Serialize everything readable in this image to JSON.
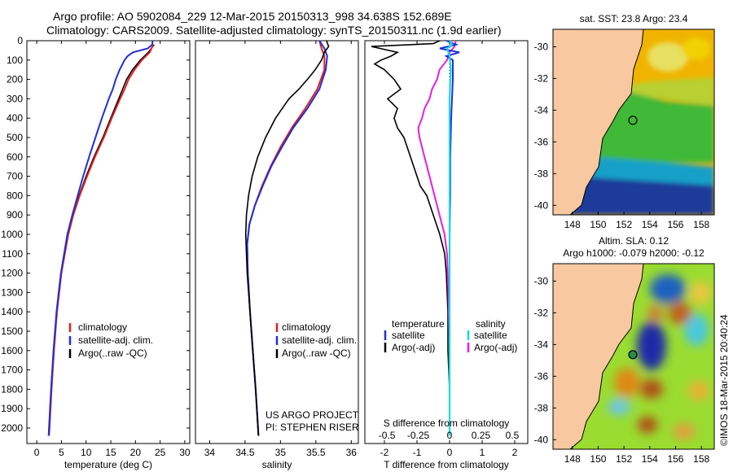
{
  "header": {
    "line1": "Argo profile: AO 5902084_229 12-Mar-2015 20150313_998 34.638S 152.689E",
    "line2": "Climatology: CARS2009. Satellite-adjusted climatology: synTS_20150311.nc (1.9d earlier)"
  },
  "colors": {
    "climatology": "#e02020",
    "satellite": "#1f2fd6",
    "argo": "#000000",
    "sat_sal": "#18d8e0",
    "argo_sal_diff": "#e020e0"
  },
  "depth_axis": {
    "ticks": [
      0,
      100,
      200,
      300,
      400,
      500,
      600,
      700,
      800,
      900,
      1000,
      1100,
      1200,
      1300,
      1400,
      1500,
      1600,
      1700,
      1800,
      1900,
      2000
    ]
  },
  "chart_data": [
    {
      "type": "line",
      "name": "temperature",
      "xlabel": "temperature (deg C)",
      "xlim": [
        -2,
        31
      ],
      "xticks": [
        0,
        5,
        10,
        15,
        20,
        25,
        30
      ],
      "ylim": [
        2080,
        0
      ],
      "legend": [
        "climatology",
        "satellite-adj. clim.",
        "Argo(..raw -QC)"
      ],
      "series": [
        {
          "name": "climatology",
          "depth": [
            20,
            60,
            100,
            150,
            200,
            250,
            300,
            400,
            500,
            600,
            700,
            800,
            900,
            1000,
            1200,
            1400,
            1600,
            1800,
            2040
          ],
          "values": [
            23.8,
            22.6,
            21.0,
            19.4,
            18.2,
            17.4,
            16.6,
            15.0,
            13.4,
            11.6,
            10.0,
            8.6,
            7.3,
            6.3,
            4.9,
            4.0,
            3.4,
            2.9,
            2.4
          ]
        },
        {
          "name": "satellite",
          "depth": [
            20,
            60,
            100,
            150,
            200,
            250,
            300,
            400,
            500,
            600,
            700,
            800,
            900,
            1000,
            1200,
            1400,
            1600,
            1800,
            2040
          ],
          "values": [
            23.6,
            22.9,
            21.3,
            19.8,
            18.6,
            17.8,
            16.9,
            15.2,
            13.6,
            11.8,
            10.2,
            8.7,
            7.4,
            6.4,
            5.0,
            4.1,
            3.5,
            3.0,
            2.5
          ]
        },
        {
          "name": "argo",
          "depth": [
            0,
            20,
            40,
            60,
            80,
            100,
            150,
            200,
            250,
            300,
            400,
            500,
            600,
            700,
            800,
            900,
            1000,
            1200,
            1400,
            1600,
            1800,
            2040
          ],
          "values": [
            23.5,
            23.4,
            22.5,
            19.5,
            18.4,
            17.8,
            16.8,
            16.0,
            15.4,
            14.6,
            13.2,
            11.9,
            10.6,
            9.4,
            8.3,
            7.2,
            6.2,
            4.9,
            4.0,
            3.4,
            2.9,
            2.4
          ]
        }
      ]
    },
    {
      "type": "line",
      "name": "salinity",
      "xlabel": "salinity",
      "xlim": [
        33.8,
        36.1
      ],
      "xticks": [
        34,
        34.5,
        35,
        35.5,
        36
      ],
      "xtick_labels": [
        "34",
        "34.5",
        "35",
        "35.5",
        "36"
      ],
      "ylim": [
        2080,
        0
      ],
      "legend": [
        "climatology",
        "satellite-adj. clim.",
        "Argo(..raw -QC)"
      ],
      "annotation": [
        "US ARGO PROJECT",
        "PI: STEPHEN RISER"
      ],
      "series": [
        {
          "name": "climatology",
          "depth": [
            0,
            40,
            80,
            150,
            250,
            350,
            450,
            550,
            650,
            750,
            850,
            950,
            1050,
            1200,
            1400,
            1600,
            1800,
            2040
          ],
          "values": [
            35.55,
            35.58,
            35.62,
            35.62,
            35.52,
            35.35,
            35.16,
            35.0,
            34.86,
            34.74,
            34.64,
            34.56,
            34.53,
            34.54,
            34.57,
            34.61,
            34.65,
            34.69
          ]
        },
        {
          "name": "satellite",
          "depth": [
            0,
            40,
            80,
            150,
            250,
            350,
            450,
            550,
            650,
            750,
            850,
            950,
            1050,
            1200,
            1400,
            1600,
            1800,
            2040
          ],
          "values": [
            35.55,
            35.62,
            35.66,
            35.64,
            35.55,
            35.38,
            35.18,
            35.02,
            34.87,
            34.75,
            34.64,
            34.56,
            34.53,
            34.54,
            34.57,
            34.61,
            34.65,
            34.69
          ]
        },
        {
          "name": "argo",
          "depth": [
            0,
            30,
            60,
            100,
            150,
            200,
            250,
            300,
            400,
            500,
            600,
            700,
            800,
            900,
            1000,
            1200,
            1400,
            1600,
            1800,
            2040
          ],
          "values": [
            35.65,
            35.68,
            35.62,
            35.58,
            35.49,
            35.38,
            35.26,
            35.12,
            34.93,
            34.79,
            34.68,
            34.6,
            34.55,
            34.52,
            34.51,
            34.53,
            34.57,
            34.61,
            34.65,
            34.69
          ]
        }
      ]
    },
    {
      "type": "line",
      "name": "differences",
      "xlabel": "T difference from climatology",
      "xlabel_top": "S difference from climatology",
      "xlim": [
        -2.6,
        2.4
      ],
      "xticks": [
        -2,
        -1,
        0,
        1,
        2
      ],
      "s_ticks": [
        -0.5,
        -0.25,
        0,
        0.25,
        0.5
      ],
      "s_tick_labels": [
        "-0.5",
        "-0.25",
        "0",
        "0.25",
        "0.5"
      ],
      "ylim": [
        2080,
        0
      ],
      "legend_temperature": "temperature",
      "legend_salinity": "salinity",
      "legend_sat": "satellite",
      "legend_argo": "Argo(-adj)",
      "series": [
        {
          "name": "T satellite",
          "depth": [
            0,
            20,
            40,
            60,
            80,
            100,
            200,
            400,
            600,
            800,
            1000,
            1400,
            1800,
            2040
          ],
          "values": [
            -0.1,
            0.2,
            -0.3,
            0.3,
            -0.1,
            0.1,
            0.1,
            0.05,
            0.02,
            0.02,
            0.0,
            0.0,
            0.0,
            0.0
          ]
        },
        {
          "name": "T argo",
          "depth": [
            0,
            15,
            30,
            60,
            80,
            100,
            120,
            150,
            200,
            250,
            300,
            350,
            400,
            450,
            500,
            550,
            600,
            650,
            700,
            750,
            800,
            850,
            900,
            1000,
            1100,
            1200,
            1400,
            1600,
            1800,
            2040
          ],
          "values": [
            -0.3,
            -0.5,
            -2.4,
            -1.6,
            -1.8,
            -2.1,
            -2.3,
            -2.0,
            -1.7,
            -1.5,
            -1.9,
            -1.6,
            -1.7,
            -1.6,
            -1.4,
            -1.3,
            -1.2,
            -1.1,
            -1.0,
            -0.9,
            -0.7,
            -0.6,
            -0.5,
            -0.3,
            -0.15,
            -0.1,
            -0.05,
            -0.05,
            0.0,
            0.0
          ]
        },
        {
          "name": "S satellite",
          "depth": [
            0,
            20,
            40,
            80,
            150,
            300,
            600,
            1000,
            1500,
            2040
          ],
          "values": [
            0.0,
            0.02,
            -0.02,
            0.0,
            0.01,
            0.0,
            0.0,
            0.0,
            0.0,
            0.0
          ]
        },
        {
          "name": "S argo",
          "depth": [
            0,
            30,
            60,
            100,
            150,
            200,
            250,
            300,
            350,
            400,
            450,
            500,
            600,
            700,
            800,
            900,
            1000,
            1100,
            1300,
            1600,
            1900,
            2040
          ],
          "values": [
            0.05,
            0.04,
            0.0,
            -0.02,
            -0.08,
            -0.1,
            -0.14,
            -0.16,
            -0.2,
            -0.22,
            -0.25,
            -0.24,
            -0.2,
            -0.16,
            -0.12,
            -0.08,
            -0.04,
            -0.02,
            -0.01,
            0.0,
            0.0,
            0.0
          ]
        }
      ]
    },
    {
      "type": "heatmap",
      "name": "sst_map",
      "title": "sat. SST: 23.8  Argo: 23.4",
      "xticks": [
        148,
        150,
        152,
        154,
        156,
        158
      ],
      "yticks": [
        -30,
        -32,
        -34,
        -36,
        -38,
        -40
      ],
      "ytick_labels": [
        "-30",
        "-32",
        "-34",
        "-36",
        "-38",
        "-40"
      ],
      "xlim": [
        146.5,
        159
      ],
      "ylim": [
        -40.6,
        -28.9
      ],
      "argo_position": {
        "lon": 152.689,
        "lat": -34.638
      }
    },
    {
      "type": "heatmap",
      "name": "sla_map",
      "title1": "Altim. SLA: 0.12",
      "title2": "Argo h1000: -0.079 h2000: -0.12",
      "xticks": [
        148,
        150,
        152,
        154,
        156,
        158
      ],
      "yticks": [
        -30,
        -32,
        -34,
        -36,
        -38,
        -40
      ],
      "ytick_labels": [
        "-30",
        "-32",
        "-34",
        "-36",
        "-38",
        "-40"
      ],
      "xlim": [
        146.5,
        159
      ],
      "ylim": [
        -40.6,
        -28.9
      ],
      "argo_position": {
        "lon": 152.689,
        "lat": -34.638
      }
    }
  ],
  "footer": {
    "credit": "©IMOS 18-Mar-2015 20:40:24"
  }
}
